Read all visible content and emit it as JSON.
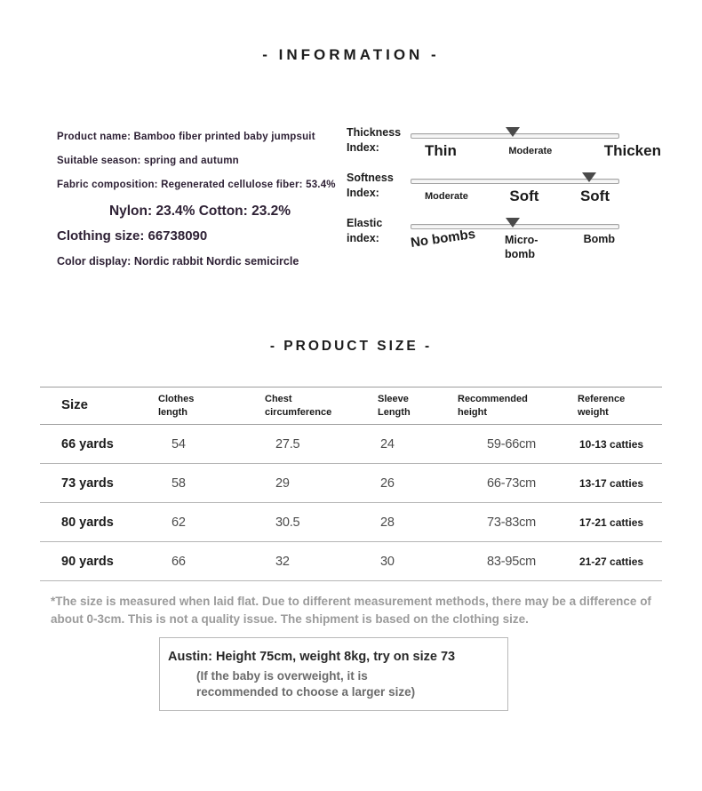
{
  "titles": {
    "information": "- INFORMATION -",
    "product_size": "- PRODUCT SIZE -"
  },
  "product_info": {
    "product_name": "Product name: Bamboo fiber printed baby jumpsuit",
    "season": "Suitable season: spring and autumn",
    "fabric": "Fabric composition: Regenerated cellulose fiber: 53.4%",
    "composition": "Nylon: 23.4% Cotton: 23.2%",
    "clothing_size": "Clothing size: 66738090",
    "color_display": "Color display: Nordic rabbit Nordic semicircle"
  },
  "indices": [
    {
      "label_line1": "Thickness",
      "label_line2": "Index:",
      "marker_percent": 49,
      "stops": [
        {
          "text": "Thin"
        },
        {
          "text": "Moderate"
        },
        {
          "text": "Thicken"
        }
      ]
    },
    {
      "label_line1": "Softness",
      "label_line2": "Index:",
      "marker_percent": 86,
      "stops": [
        {
          "text": "Moderate"
        },
        {
          "text": "Soft"
        },
        {
          "text": "Soft"
        }
      ]
    },
    {
      "label_line1": "Elastic",
      "label_line2": "index:",
      "marker_percent": 49,
      "stops": [
        {
          "text": "No bombs"
        },
        {
          "text": "Micro-bomb"
        },
        {
          "text": "Bomb"
        }
      ]
    }
  ],
  "size_table": {
    "headers": [
      [
        "Size",
        ""
      ],
      [
        "Clothes",
        "length"
      ],
      [
        "Chest",
        "circumference"
      ],
      [
        "Sleeve",
        "Length"
      ],
      [
        "Recommended",
        "height"
      ],
      [
        "Reference",
        "weight"
      ]
    ],
    "rows": [
      [
        "66 yards",
        "54",
        "27.5",
        "24",
        "59-66cm",
        "10-13 catties"
      ],
      [
        "73 yards",
        "58",
        "29",
        "26",
        "66-73cm",
        "13-17 catties"
      ],
      [
        "80 yards",
        "62",
        "30.5",
        "28",
        "73-83cm",
        "17-21 catties"
      ],
      [
        "90 yards",
        "66",
        "32",
        "30",
        "83-95cm",
        "21-27 catties"
      ]
    ]
  },
  "note": "*The size is measured when laid flat. Due to different measurement methods, there may be a difference of about 0-3cm. This is not a quality issue. The shipment is based on the clothing size.",
  "fit_note": {
    "model": "Austin: Height 75cm, weight 8kg, try on size 73",
    "advice": "(If the baby is overweight, it is recommended to choose a larger size)"
  },
  "colors": {
    "info_text": "#2e2135",
    "dark_text": "#1c1c1c",
    "note_gray": "#9b9b9b",
    "marker_gray": "#4a4a4a",
    "table_line": "#9d9d9d"
  }
}
